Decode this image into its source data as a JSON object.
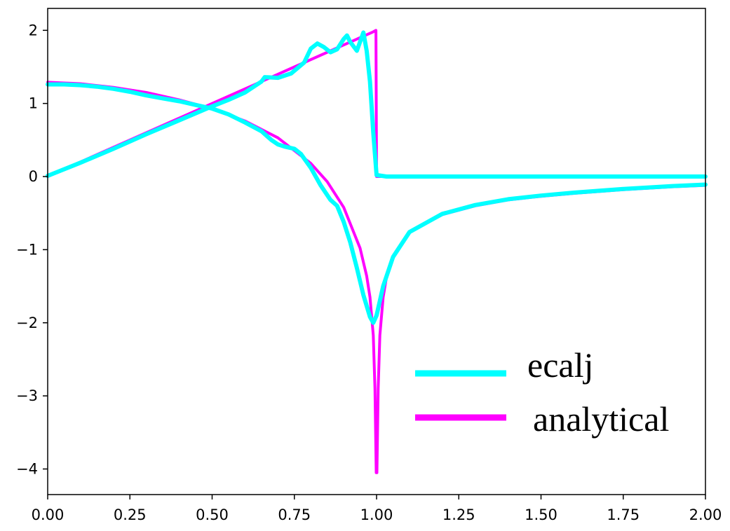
{
  "chart_data": {
    "type": "line",
    "title": "",
    "xlabel": "",
    "ylabel": "",
    "xlim": [
      0.0,
      2.0
    ],
    "ylim": [
      -4.35,
      2.3
    ],
    "grid": false,
    "legend_position": "bottom-right",
    "x_ticks": [
      0.0,
      0.25,
      0.5,
      0.75,
      1.0,
      1.25,
      1.5,
      1.75,
      2.0
    ],
    "x_tick_labels": [
      "0.00",
      "0.25",
      "0.50",
      "0.75",
      "1.00",
      "1.25",
      "1.50",
      "1.75",
      "2.00"
    ],
    "y_ticks": [
      2,
      1,
      0,
      -1,
      -2,
      -3,
      -4
    ],
    "y_tick_labels": [
      "2",
      "1",
      "0",
      "−1",
      "−2",
      "−3",
      "−4"
    ],
    "series": [
      {
        "name": "analytical",
        "color": "#ff00ff",
        "line_width": 4,
        "curves": [
          [
            [
              0,
              0
            ],
            [
              0.25,
              0.5
            ],
            [
              0.5,
              1.0
            ],
            [
              0.75,
              1.5
            ],
            [
              0.9,
              1.8
            ],
            [
              0.99,
              1.98
            ],
            [
              0.998,
              2.0
            ],
            [
              1.0,
              0.0
            ],
            [
              2.0,
              0.0
            ]
          ],
          [
            [
              0,
              1.29
            ],
            [
              0.1,
              1.27
            ],
            [
              0.2,
              1.22
            ],
            [
              0.3,
              1.15
            ],
            [
              0.4,
              1.05
            ],
            [
              0.5,
              0.93
            ],
            [
              0.6,
              0.76
            ],
            [
              0.7,
              0.53
            ],
            [
              0.8,
              0.18
            ],
            [
              0.85,
              -0.07
            ],
            [
              0.9,
              -0.42
            ],
            [
              0.95,
              -0.98
            ],
            [
              0.97,
              -1.36
            ],
            [
              0.98,
              -1.65
            ],
            [
              0.99,
              -2.17
            ],
            [
              0.995,
              -2.9
            ],
            [
              0.999,
              -4.05
            ],
            [
              1.001,
              -4.05
            ],
            [
              1.005,
              -2.9
            ],
            [
              1.01,
              -2.17
            ],
            [
              1.02,
              -1.65
            ],
            [
              1.03,
              -1.38
            ],
            [
              1.05,
              -1.1
            ],
            [
              1.1,
              -0.76
            ],
            [
              1.2,
              -0.52
            ],
            [
              1.3,
              -0.4
            ],
            [
              1.4,
              -0.32
            ],
            [
              1.5,
              -0.27
            ],
            [
              1.6,
              -0.23
            ],
            [
              1.75,
              -0.18
            ],
            [
              1.9,
              -0.14
            ],
            [
              2.0,
              -0.12
            ]
          ]
        ]
      },
      {
        "name": "ecalj",
        "color": "#00ffff",
        "line_width": 6,
        "curves": [
          [
            [
              0,
              0.01
            ],
            [
              0.1,
              0.19
            ],
            [
              0.2,
              0.38
            ],
            [
              0.3,
              0.58
            ],
            [
              0.4,
              0.77
            ],
            [
              0.5,
              0.96
            ],
            [
              0.55,
              1.05
            ],
            [
              0.6,
              1.15
            ],
            [
              0.65,
              1.3
            ],
            [
              0.66,
              1.36
            ],
            [
              0.7,
              1.35
            ],
            [
              0.74,
              1.41
            ],
            [
              0.78,
              1.56
            ],
            [
              0.8,
              1.75
            ],
            [
              0.82,
              1.82
            ],
            [
              0.84,
              1.77
            ],
            [
              0.86,
              1.7
            ],
            [
              0.88,
              1.74
            ],
            [
              0.9,
              1.88
            ],
            [
              0.91,
              1.93
            ],
            [
              0.92,
              1.84
            ],
            [
              0.94,
              1.72
            ],
            [
              0.96,
              1.97
            ],
            [
              0.97,
              1.72
            ],
            [
              0.98,
              1.3
            ],
            [
              0.99,
              0.6
            ],
            [
              1.0,
              0.02
            ],
            [
              1.03,
              0.0
            ],
            [
              2.0,
              0.0
            ]
          ],
          [
            [
              0,
              1.26
            ],
            [
              0.05,
              1.26
            ],
            [
              0.1,
              1.25
            ],
            [
              0.15,
              1.23
            ],
            [
              0.2,
              1.2
            ],
            [
              0.25,
              1.16
            ],
            [
              0.3,
              1.11
            ],
            [
              0.35,
              1.07
            ],
            [
              0.4,
              1.03
            ],
            [
              0.45,
              0.98
            ],
            [
              0.5,
              0.93
            ],
            [
              0.55,
              0.85
            ],
            [
              0.6,
              0.74
            ],
            [
              0.65,
              0.62
            ],
            [
              0.68,
              0.5
            ],
            [
              0.7,
              0.44
            ],
            [
              0.72,
              0.41
            ],
            [
              0.75,
              0.38
            ],
            [
              0.77,
              0.31
            ],
            [
              0.8,
              0.12
            ],
            [
              0.83,
              -0.12
            ],
            [
              0.86,
              -0.32
            ],
            [
              0.88,
              -0.4
            ],
            [
              0.9,
              -0.62
            ],
            [
              0.92,
              -0.9
            ],
            [
              0.94,
              -1.25
            ],
            [
              0.96,
              -1.62
            ],
            [
              0.98,
              -1.92
            ],
            [
              0.99,
              -2.0
            ],
            [
              1.0,
              -1.9
            ],
            [
              1.02,
              -1.5
            ],
            [
              1.05,
              -1.1
            ],
            [
              1.1,
              -0.76
            ],
            [
              1.2,
              -0.51
            ],
            [
              1.3,
              -0.39
            ],
            [
              1.4,
              -0.31
            ],
            [
              1.5,
              -0.26
            ],
            [
              1.6,
              -0.22
            ],
            [
              1.75,
              -0.17
            ],
            [
              1.9,
              -0.13
            ],
            [
              2.0,
              -0.11
            ]
          ]
        ]
      }
    ],
    "legend": {
      "entries": [
        {
          "label": "ecalj",
          "color": "#00ffff"
        },
        {
          "label": "analytical",
          "color": "#ff00ff"
        }
      ]
    }
  }
}
